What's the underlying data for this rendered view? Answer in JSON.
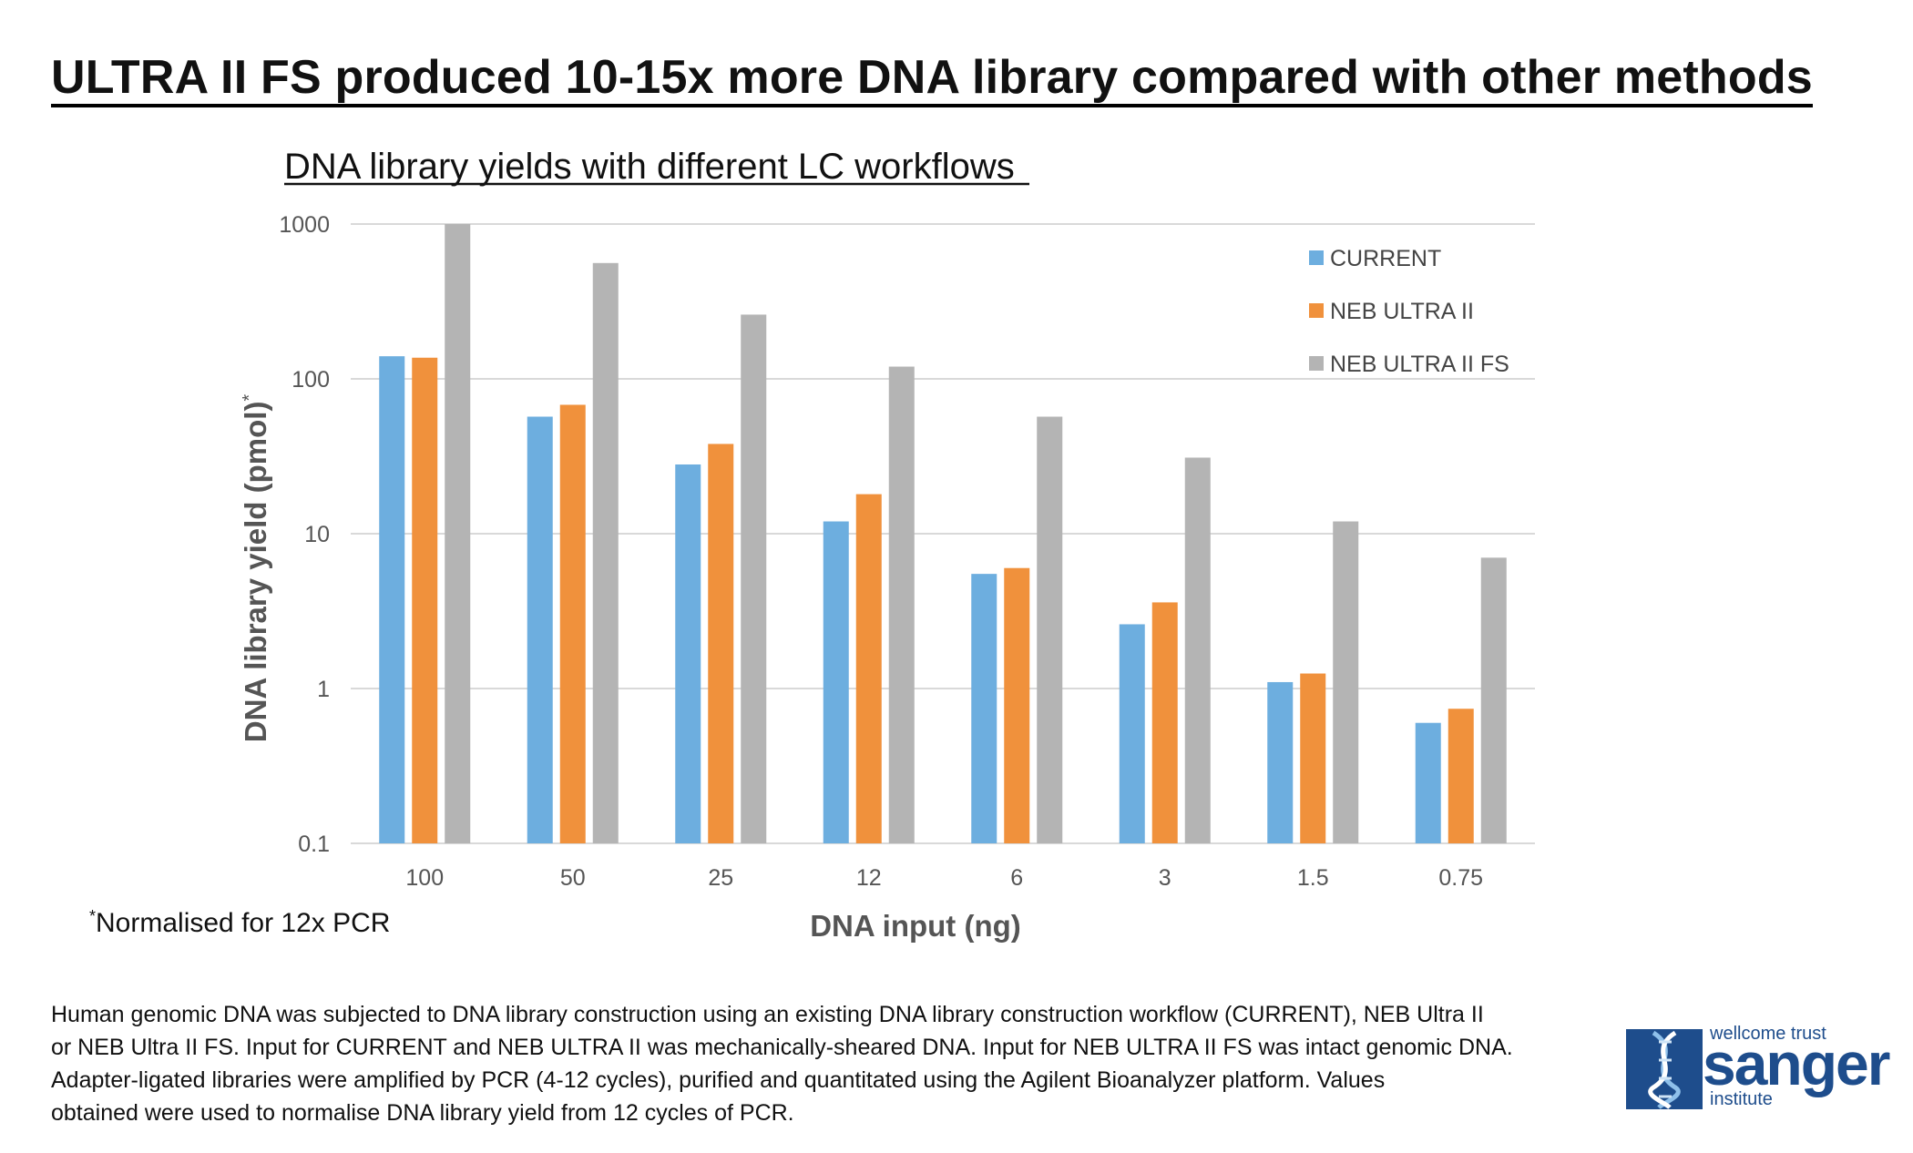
{
  "page_title": "ULTRA II FS produced 10-15x more DNA library compared with other methods",
  "chart_data": {
    "type": "bar",
    "title": "DNA library yields with different LC workflows",
    "xlabel": "DNA input (ng)",
    "ylabel": "DNA library yield (pmol)",
    "ylabel_marker": "*",
    "yscale": "log",
    "ylim": [
      0.1,
      1000
    ],
    "yticks": [
      "0.1",
      "1",
      "10",
      "100",
      "1000"
    ],
    "grid": true,
    "legend_position": "top-right",
    "categories": [
      "100",
      "50",
      "25",
      "12",
      "6",
      "3",
      "1.5",
      "0.75"
    ],
    "series": [
      {
        "name": "CURRENT",
        "color": "#6daedf",
        "values": [
          140,
          57,
          28,
          12,
          5.5,
          2.6,
          1.1,
          0.6
        ]
      },
      {
        "name": "NEB ULTRA II",
        "color": "#f0913c",
        "values": [
          137,
          68,
          38,
          18,
          6.0,
          3.6,
          1.25,
          0.74
        ]
      },
      {
        "name": "NEB ULTRA II FS",
        "color": "#b4b4b4",
        "values": [
          1000,
          560,
          260,
          120,
          57,
          31,
          12,
          7.0
        ]
      }
    ]
  },
  "footnote": {
    "marker": "*",
    "text": "Normalised for 12x PCR"
  },
  "caption": [
    "Human genomic DNA was subjected to DNA library construction using an existing DNA library construction workflow (CURRENT), NEB Ultra II",
    "or NEB Ultra II FS. Input for CURRENT and NEB ULTRA II was mechanically-sheared DNA. Input for NEB ULTRA II FS was intact genomic DNA.",
    "Adapter-ligated libraries were amplified by PCR (4-12 cycles), purified and quantitated using the Agilent Bioanalyzer platform. Values",
    "obtained were used to normalise DNA library yield from 12 cycles of PCR."
  ],
  "logo": {
    "top": "wellcome trust",
    "main": "sanger",
    "bottom": "institute",
    "color": "#1e4d8c"
  }
}
